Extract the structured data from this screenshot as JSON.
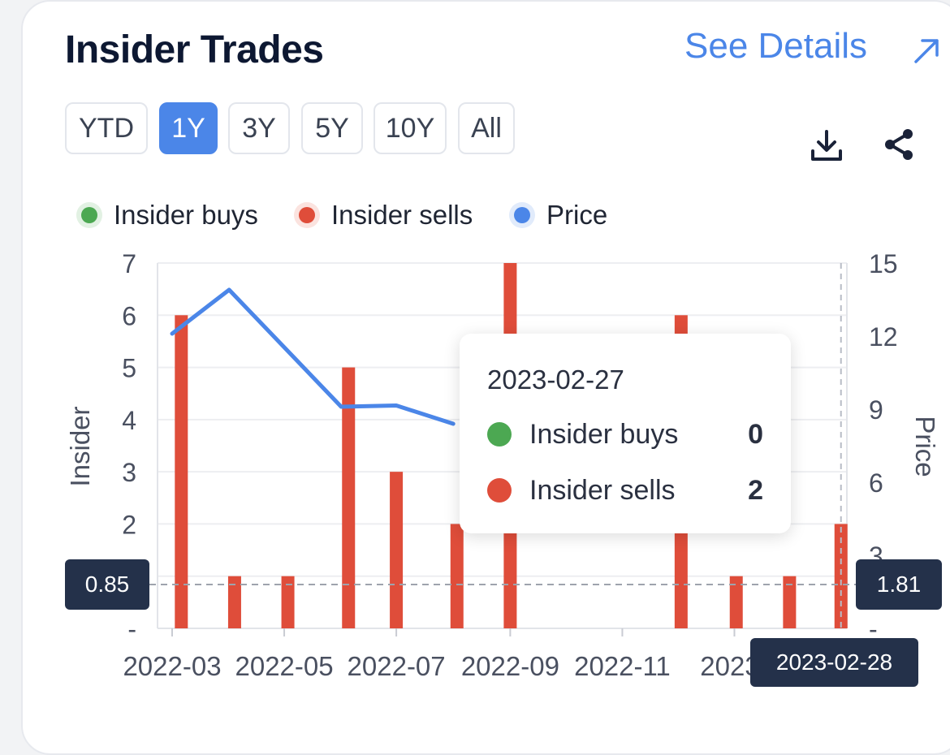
{
  "header": {
    "title": "Insider Trades",
    "see_details": "See Details"
  },
  "ranges": [
    "YTD",
    "1Y",
    "3Y",
    "5Y",
    "10Y",
    "All"
  ],
  "active_range": "1Y",
  "toolbar": {
    "download_icon": "download-icon",
    "share_icon": "share-icon"
  },
  "legend": [
    {
      "label": "Insider buys",
      "color": "#4ca852"
    },
    {
      "label": "Insider sells",
      "color": "#df4d3a"
    },
    {
      "label": "Price",
      "color": "#4b86e8"
    }
  ],
  "tooltip": {
    "date": "2023-02-27",
    "rows": [
      {
        "label": "Insider buys",
        "value": "0",
        "color": "#4ca852"
      },
      {
        "label": "Insider sells",
        "value": "2",
        "color": "#df4d3a"
      }
    ]
  },
  "crosshair": {
    "left_value": "0.85",
    "right_value": "1.81",
    "x_label": "2023-02-28"
  },
  "chart_data": {
    "type": "bar",
    "x_labels": [
      "2022-03",
      "2022-05",
      "2022-07",
      "2022-09",
      "2022-11",
      "2023-"
    ],
    "y_left_label": "Insider",
    "y_right_label": "Price",
    "y_left_ticks": [
      "-",
      "2",
      "3",
      "4",
      "5",
      "6",
      "7"
    ],
    "y_right_ticks": [
      "-",
      "3",
      "6",
      "9",
      "12",
      "15"
    ],
    "ylim_left": [
      0,
      7
    ],
    "ylim_right": [
      0,
      15
    ],
    "grid": true,
    "series": [
      {
        "name": "Insider sells",
        "type": "bar",
        "color": "#df4d3a",
        "points": [
          [
            "2022-03-06",
            6
          ],
          [
            "2022-04-04",
            1
          ],
          [
            "2022-05-03",
            1
          ],
          [
            "2022-06-05",
            5
          ],
          [
            "2022-07-01",
            3
          ],
          [
            "2022-08-03",
            2
          ],
          [
            "2022-09-01",
            7
          ],
          [
            "2022-12-03",
            6
          ],
          [
            "2023-01-02",
            1
          ],
          [
            "2023-01-31",
            1
          ],
          [
            "2023-02-28",
            2
          ]
        ]
      },
      {
        "name": "Insider buys",
        "type": "bar",
        "color": "#4ca852",
        "points": []
      },
      {
        "name": "Price",
        "type": "line",
        "color": "#4b86e8",
        "points": [
          [
            "2022-03-01",
            12.1
          ],
          [
            "2022-04-01",
            13.9
          ],
          [
            "2022-06-01",
            9.1
          ],
          [
            "2022-07-01",
            9.15
          ],
          [
            "2022-08-01",
            8.4
          ]
        ]
      }
    ]
  }
}
